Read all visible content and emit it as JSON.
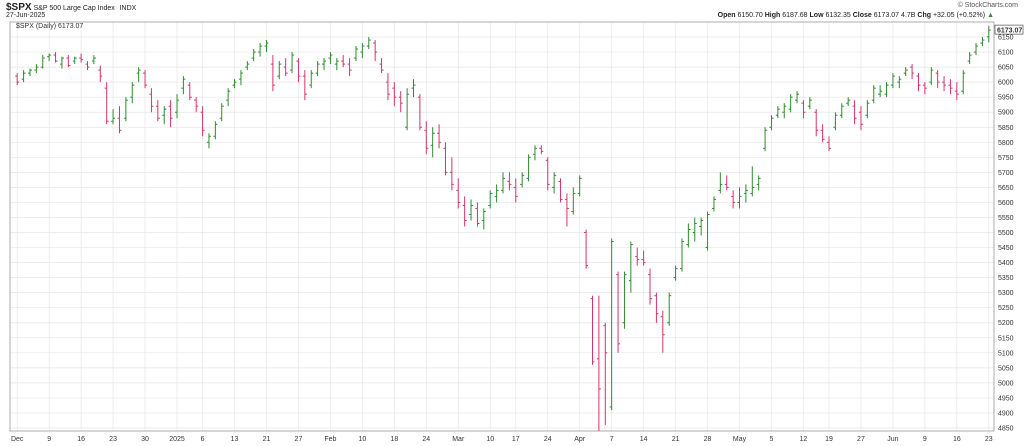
{
  "header": {
    "symbol": "$SPX",
    "name": "S&P 500 Large Cap Index",
    "exchange": "INDX",
    "date": "27-Jun-2025",
    "credit": "© StockCharts.com",
    "open_label": "Open",
    "open": "6150.70",
    "high_label": "High",
    "high": "6187.68",
    "low_label": "Low",
    "low": "6132.35",
    "close_label": "Close",
    "close": "6173.07",
    "volume": "4.7B",
    "chg_label": "Chg",
    "chg": "+32.05 (+0.52%)",
    "chg_arrow": "▲"
  },
  "legend": {
    "text": "$SPX (Daily) 6173.07"
  },
  "last_price_tag": "6173.07",
  "colors": {
    "up": "#2e8b2e",
    "down": "#d6336c",
    "grid": "#e6e6e6",
    "tag_bg": "#ffffff"
  },
  "chart_data": {
    "type": "ohlc",
    "x_tick_labels": [
      "Dec",
      "9",
      "16",
      "23",
      "30",
      "2025",
      "6",
      "13",
      "21",
      "27",
      "Feb",
      "10",
      "18",
      "24",
      "Mar",
      "10",
      "17",
      "24",
      "Apr",
      "7",
      "14",
      "21",
      "28",
      "May",
      "5",
      "12",
      "19",
      "27",
      "Jun",
      "9",
      "16",
      "23"
    ],
    "y_ticks": [
      4850,
      4900,
      4950,
      5000,
      5050,
      5100,
      5150,
      5200,
      5250,
      5300,
      5350,
      5400,
      5450,
      5500,
      5550,
      5600,
      5650,
      5700,
      5750,
      5800,
      5850,
      5900,
      5950,
      6000,
      6050,
      6100,
      6150
    ],
    "ylim": [
      4840,
      6200
    ],
    "grid": true,
    "bars": [
      [
        6020,
        6030,
        5990,
        6000
      ],
      [
        6010,
        6040,
        6000,
        6030
      ],
      [
        6030,
        6045,
        6020,
        6040
      ],
      [
        6040,
        6060,
        6030,
        6050
      ],
      [
        6050,
        6090,
        6045,
        6080
      ],
      [
        6085,
        6095,
        6070,
        6090
      ],
      [
        6090,
        6100,
        6065,
        6070
      ],
      [
        6060,
        6085,
        6045,
        6080
      ],
      [
        6080,
        6090,
        6050,
        6055
      ],
      [
        6070,
        6085,
        6060,
        6080
      ],
      [
        6080,
        6095,
        6065,
        6075
      ],
      [
        6060,
        6070,
        6040,
        6050
      ],
      [
        6070,
        6090,
        6060,
        6080
      ],
      [
        6040,
        6055,
        6000,
        6020
      ],
      [
        5980,
        6000,
        5860,
        5870
      ],
      [
        5870,
        5910,
        5860,
        5880
      ],
      [
        5880,
        5920,
        5830,
        5840
      ],
      [
        5880,
        5950,
        5870,
        5940
      ],
      [
        5950,
        6000,
        5930,
        5990
      ],
      [
        6030,
        6050,
        6000,
        6040
      ],
      [
        6030,
        6040,
        5980,
        5990
      ],
      [
        5960,
        5980,
        5900,
        5920
      ],
      [
        5920,
        5940,
        5870,
        5880
      ],
      [
        5890,
        5920,
        5860,
        5910
      ],
      [
        5920,
        5940,
        5850,
        5880
      ],
      [
        5900,
        5960,
        5880,
        5940
      ],
      [
        5980,
        6020,
        5960,
        6010
      ],
      [
        5990,
        6000,
        5940,
        5950
      ],
      [
        5940,
        5950,
        5900,
        5920
      ],
      [
        5900,
        5920,
        5820,
        5840
      ],
      [
        5800,
        5830,
        5780,
        5820
      ],
      [
        5820,
        5870,
        5810,
        5860
      ],
      [
        5880,
        5930,
        5870,
        5920
      ],
      [
        5940,
        5980,
        5920,
        5970
      ],
      [
        5990,
        6010,
        5980,
        6000
      ],
      [
        6010,
        6040,
        5990,
        6030
      ],
      [
        6050,
        6070,
        6040,
        6060
      ],
      [
        6080,
        6110,
        6070,
        6100
      ],
      [
        6100,
        6130,
        6085,
        6120
      ],
      [
        6120,
        6140,
        6100,
        6130
      ],
      [
        6060,
        6090,
        5970,
        5990
      ],
      [
        6020,
        6070,
        6010,
        6060
      ],
      [
        6050,
        6080,
        6020,
        6030
      ],
      [
        6040,
        6100,
        6030,
        6090
      ],
      [
        6070,
        6080,
        6000,
        6020
      ],
      [
        6020,
        6040,
        5940,
        5960
      ],
      [
        5990,
        6040,
        5980,
        6030
      ],
      [
        6030,
        6070,
        6020,
        6060
      ],
      [
        6060,
        6080,
        6040,
        6070
      ],
      [
        6080,
        6100,
        6060,
        6090
      ],
      [
        6060,
        6080,
        6040,
        6070
      ],
      [
        6070,
        6090,
        6050,
        6060
      ],
      [
        6060,
        6080,
        6020,
        6040
      ],
      [
        6080,
        6120,
        6070,
        6110
      ],
      [
        6100,
        6130,
        6080,
        6120
      ],
      [
        6120,
        6150,
        6110,
        6140
      ],
      [
        6130,
        6140,
        6070,
        6100
      ],
      [
        6060,
        6080,
        6030,
        6040
      ],
      [
        6000,
        6030,
        5940,
        5960
      ],
      [
        5980,
        6000,
        5920,
        5950
      ],
      [
        5950,
        5970,
        5900,
        5930
      ],
      [
        5850,
        5980,
        5840,
        5960
      ],
      [
        5980,
        6010,
        5950,
        5990
      ],
      [
        5950,
        5960,
        5840,
        5850
      ],
      [
        5840,
        5870,
        5760,
        5780
      ],
      [
        5790,
        5850,
        5750,
        5830
      ],
      [
        5830,
        5860,
        5780,
        5800
      ],
      [
        5780,
        5800,
        5690,
        5700
      ],
      [
        5700,
        5750,
        5640,
        5660
      ],
      [
        5640,
        5680,
        5580,
        5600
      ],
      [
        5590,
        5620,
        5520,
        5540
      ],
      [
        5560,
        5610,
        5540,
        5590
      ],
      [
        5580,
        5600,
        5520,
        5530
      ],
      [
        5540,
        5580,
        5510,
        5570
      ],
      [
        5590,
        5640,
        5580,
        5630
      ],
      [
        5620,
        5660,
        5600,
        5640
      ],
      [
        5640,
        5700,
        5630,
        5680
      ],
      [
        5670,
        5700,
        5640,
        5660
      ],
      [
        5650,
        5680,
        5600,
        5620
      ],
      [
        5660,
        5700,
        5650,
        5690
      ],
      [
        5680,
        5760,
        5670,
        5750
      ],
      [
        5760,
        5790,
        5740,
        5780
      ],
      [
        5780,
        5790,
        5760,
        5770
      ],
      [
        5740,
        5750,
        5640,
        5660
      ],
      [
        5650,
        5700,
        5630,
        5690
      ],
      [
        5670,
        5680,
        5600,
        5610
      ],
      [
        5610,
        5630,
        5520,
        5580
      ],
      [
        5570,
        5650,
        5560,
        5630
      ],
      [
        5630,
        5690,
        5620,
        5680
      ],
      [
        5500,
        5510,
        5380,
        5390
      ],
      [
        5280,
        5290,
        5060,
        5070
      ],
      [
        5080,
        5290,
        4840,
        4980
      ],
      [
        5190,
        5200,
        4860,
        5100
      ],
      [
        4920,
        5480,
        4910,
        5470
      ],
      [
        5360,
        5370,
        5100,
        5130
      ],
      [
        5200,
        5370,
        5180,
        5360
      ],
      [
        5340,
        5470,
        5300,
        5460
      ],
      [
        5420,
        5450,
        5390,
        5410
      ],
      [
        5410,
        5440,
        5390,
        5400
      ],
      [
        5360,
        5380,
        5260,
        5280
      ],
      [
        5290,
        5300,
        5200,
        5230
      ],
      [
        5220,
        5240,
        5100,
        5160
      ],
      [
        5200,
        5300,
        5190,
        5290
      ],
      [
        5350,
        5390,
        5340,
        5380
      ],
      [
        5380,
        5480,
        5370,
        5470
      ],
      [
        5460,
        5530,
        5450,
        5510
      ],
      [
        5500,
        5550,
        5470,
        5530
      ],
      [
        5520,
        5550,
        5490,
        5540
      ],
      [
        5450,
        5570,
        5440,
        5560
      ],
      [
        5580,
        5620,
        5570,
        5610
      ],
      [
        5640,
        5700,
        5630,
        5660
      ],
      [
        5660,
        5690,
        5640,
        5650
      ],
      [
        5620,
        5640,
        5580,
        5600
      ],
      [
        5600,
        5650,
        5580,
        5620
      ],
      [
        5630,
        5660,
        5600,
        5640
      ],
      [
        5630,
        5720,
        5620,
        5650
      ],
      [
        5660,
        5690,
        5640,
        5680
      ],
      [
        5780,
        5850,
        5770,
        5840
      ],
      [
        5850,
        5890,
        5840,
        5880
      ],
      [
        5890,
        5920,
        5880,
        5910
      ],
      [
        5900,
        5930,
        5880,
        5920
      ],
      [
        5910,
        5960,
        5900,
        5950
      ],
      [
        5940,
        5970,
        5930,
        5960
      ],
      [
        5930,
        5940,
        5880,
        5900
      ],
      [
        5920,
        5950,
        5910,
        5940
      ],
      [
        5900,
        5910,
        5820,
        5840
      ],
      [
        5840,
        5860,
        5800,
        5810
      ],
      [
        5800,
        5820,
        5770,
        5780
      ],
      [
        5850,
        5900,
        5840,
        5890
      ],
      [
        5890,
        5930,
        5880,
        5920
      ],
      [
        5930,
        5950,
        5920,
        5940
      ],
      [
        5920,
        5940,
        5860,
        5880
      ],
      [
        5900,
        5920,
        5840,
        5860
      ],
      [
        5890,
        5940,
        5880,
        5930
      ],
      [
        5940,
        5990,
        5930,
        5980
      ],
      [
        5960,
        5990,
        5950,
        5970
      ],
      [
        5960,
        6000,
        5950,
        5990
      ],
      [
        5990,
        6030,
        5980,
        6020
      ],
      [
        6000,
        6020,
        5980,
        6010
      ],
      [
        6030,
        6050,
        6020,
        6040
      ],
      [
        6050,
        6060,
        6010,
        6030
      ],
      [
        6020,
        6030,
        5970,
        5990
      ],
      [
        5990,
        6000,
        5960,
        5980
      ],
      [
        6000,
        6050,
        5990,
        6040
      ],
      [
        6030,
        6040,
        5980,
        6000
      ],
      [
        6000,
        6020,
        5970,
        5990
      ],
      [
        5990,
        6010,
        5960,
        5980
      ],
      [
        5970,
        6000,
        5940,
        5960
      ],
      [
        5970,
        6040,
        5960,
        6030
      ],
      [
        6070,
        6100,
        6060,
        6090
      ],
      [
        6100,
        6130,
        6090,
        6120
      ],
      [
        6130,
        6150,
        6120,
        6140
      ],
      [
        6150.7,
        6187.68,
        6132.35,
        6173.07
      ]
    ]
  }
}
